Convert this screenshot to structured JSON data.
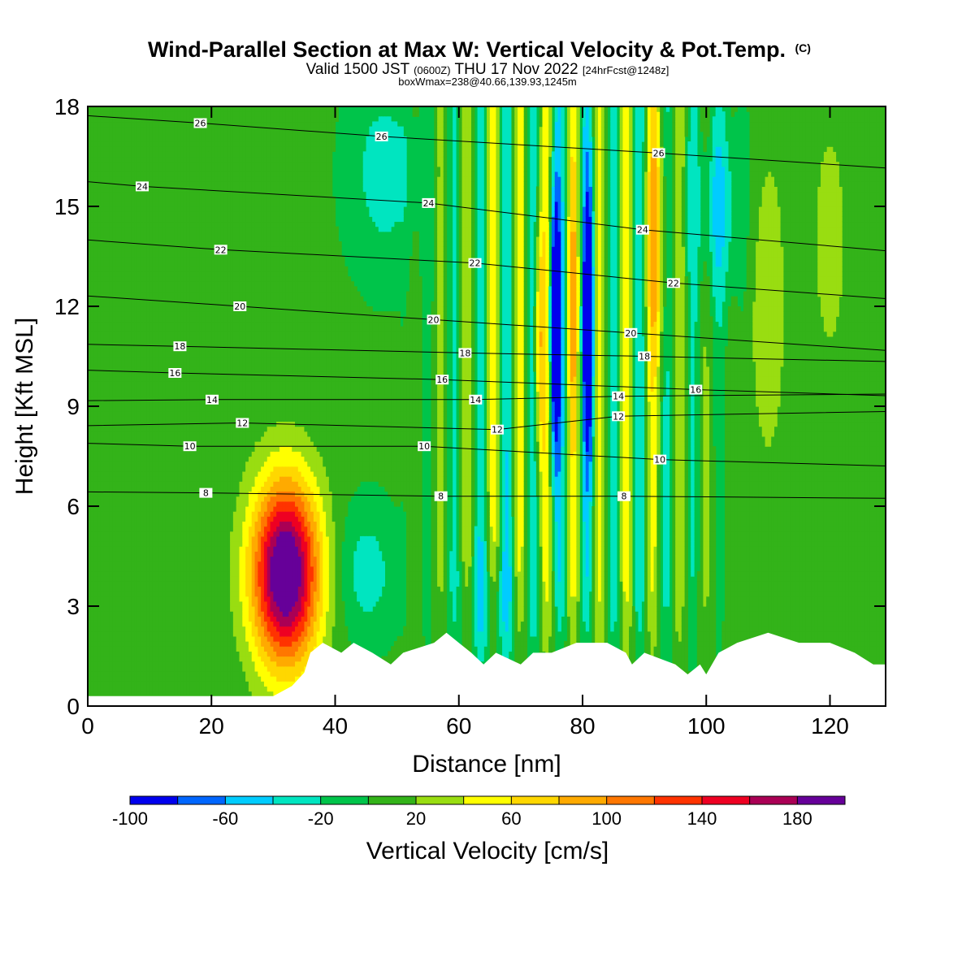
{
  "chart_data": {
    "type": "heatmap",
    "title": "Wind-Parallel Section at Max W: Vertical Velocity & Pot.Temp.",
    "title_mark": "(C)",
    "subtitle_main": "Valid 1500 JST",
    "subtitle_z": "(0600Z)",
    "subtitle_date": "THU 17 Nov 2022",
    "subtitle_fcst": "[24hrFcst@1248z]",
    "subtitle2": "boxWmax=238@40.66,139.93,1245m",
    "xlabel": "Distance [nm]",
    "ylabel": "Height [Kft MSL]",
    "xlim": [
      0,
      129
    ],
    "ylim": [
      0,
      18
    ],
    "x_ticks": [
      "0",
      "20",
      "40",
      "60",
      "80",
      "100",
      "120"
    ],
    "y_ticks": [
      "0",
      "3",
      "6",
      "9",
      "12",
      "15",
      "18"
    ],
    "colorbar": {
      "label": "Vertical Velocity [cm/s]",
      "levels": [
        -100,
        -80,
        -60,
        -40,
        -20,
        0,
        20,
        40,
        60,
        80,
        100,
        120,
        140,
        160,
        180,
        200
      ],
      "tick_labels": [
        "-100",
        "-60",
        "-20",
        "20",
        "60",
        "100",
        "140",
        "180"
      ],
      "colors": [
        "#0000ee",
        "#0066ff",
        "#00ccff",
        "#00e5c0",
        "#00c44a",
        "#33b319",
        "#99dd11",
        "#ffff00",
        "#ffd700",
        "#ffaa00",
        "#ff7700",
        "#ff3300",
        "#ee0022",
        "#aa0055",
        "#660099"
      ]
    },
    "background_color": "#00c44a",
    "updraft_core": {
      "x": 32,
      "y": 4,
      "max_wmax_cm_s": 238
    },
    "theta_contours_C": [
      8,
      10,
      12,
      14,
      16,
      18,
      20,
      22,
      24,
      26
    ],
    "theta_labels": [
      {
        "text": "26",
        "x": 18.2,
        "y": 17.5
      },
      {
        "text": "26",
        "x": 47.5,
        "y": 17.1
      },
      {
        "text": "26",
        "x": 92.3,
        "y": 16.6
      },
      {
        "text": "24",
        "x": 8.8,
        "y": 15.6
      },
      {
        "text": "24",
        "x": 55.1,
        "y": 15.1
      },
      {
        "text": "24",
        "x": 89.7,
        "y": 14.3
      },
      {
        "text": "22",
        "x": 21.5,
        "y": 13.7
      },
      {
        "text": "22",
        "x": 62.6,
        "y": 13.3
      },
      {
        "text": "22",
        "x": 94.7,
        "y": 12.7
      },
      {
        "text": "20",
        "x": 24.6,
        "y": 12.0
      },
      {
        "text": "20",
        "x": 55.9,
        "y": 11.6
      },
      {
        "text": "20",
        "x": 87.8,
        "y": 11.2
      },
      {
        "text": "18",
        "x": 14.9,
        "y": 10.8
      },
      {
        "text": "18",
        "x": 61.0,
        "y": 10.6
      },
      {
        "text": "18",
        "x": 90.0,
        "y": 10.5
      },
      {
        "text": "16",
        "x": 14.1,
        "y": 10.0
      },
      {
        "text": "16",
        "x": 57.3,
        "y": 9.8
      },
      {
        "text": "16",
        "x": 98.3,
        "y": 9.5
      },
      {
        "text": "14",
        "x": 20.1,
        "y": 9.2
      },
      {
        "text": "14",
        "x": 62.7,
        "y": 9.2
      },
      {
        "text": "14",
        "x": 85.8,
        "y": 9.3
      },
      {
        "text": "12",
        "x": 25.0,
        "y": 8.5
      },
      {
        "text": "12",
        "x": 66.2,
        "y": 8.3
      },
      {
        "text": "12",
        "x": 85.8,
        "y": 8.7
      },
      {
        "text": "10",
        "x": 16.5,
        "y": 7.8
      },
      {
        "text": "10",
        "x": 54.4,
        "y": 7.8
      },
      {
        "text": "10",
        "x": 92.5,
        "y": 7.4
      },
      {
        "text": "8",
        "x": 19.1,
        "y": 6.4
      },
      {
        "text": "8",
        "x": 57.1,
        "y": 6.3
      },
      {
        "text": "8",
        "x": 86.7,
        "y": 6.3
      }
    ],
    "terrain_kft": [
      {
        "x": 0,
        "y": 0.3
      },
      {
        "x": 5,
        "y": 0.3
      },
      {
        "x": 10,
        "y": 0.3
      },
      {
        "x": 15,
        "y": 0.3
      },
      {
        "x": 20,
        "y": 0.3
      },
      {
        "x": 25,
        "y": 0.3
      },
      {
        "x": 30,
        "y": 0.3
      },
      {
        "x": 33,
        "y": 0.6
      },
      {
        "x": 35,
        "y": 1.0
      },
      {
        "x": 36,
        "y": 1.6
      },
      {
        "x": 38,
        "y": 1.9
      },
      {
        "x": 41,
        "y": 1.6
      },
      {
        "x": 43,
        "y": 1.9
      },
      {
        "x": 46,
        "y": 1.6
      },
      {
        "x": 49,
        "y": 1.25
      },
      {
        "x": 51,
        "y": 1.6
      },
      {
        "x": 56,
        "y": 1.9
      },
      {
        "x": 58,
        "y": 2.2
      },
      {
        "x": 60,
        "y": 1.9
      },
      {
        "x": 62,
        "y": 1.6
      },
      {
        "x": 64,
        "y": 1.25
      },
      {
        "x": 66,
        "y": 1.6
      },
      {
        "x": 70,
        "y": 1.25
      },
      {
        "x": 72,
        "y": 1.6
      },
      {
        "x": 75,
        "y": 1.6
      },
      {
        "x": 79,
        "y": 1.9
      },
      {
        "x": 84,
        "y": 1.9
      },
      {
        "x": 87,
        "y": 1.6
      },
      {
        "x": 88,
        "y": 1.25
      },
      {
        "x": 90,
        "y": 1.6
      },
      {
        "x": 95,
        "y": 1.25
      },
      {
        "x": 97,
        "y": 0.95
      },
      {
        "x": 99,
        "y": 1.25
      },
      {
        "x": 100,
        "y": 0.95
      },
      {
        "x": 102,
        "y": 1.6
      },
      {
        "x": 105,
        "y": 1.9
      },
      {
        "x": 110,
        "y": 2.2
      },
      {
        "x": 115,
        "y": 1.9
      },
      {
        "x": 120,
        "y": 1.9
      },
      {
        "x": 124,
        "y": 1.6
      },
      {
        "x": 127,
        "y": 1.25
      },
      {
        "x": 129,
        "y": 1.25
      }
    ]
  }
}
